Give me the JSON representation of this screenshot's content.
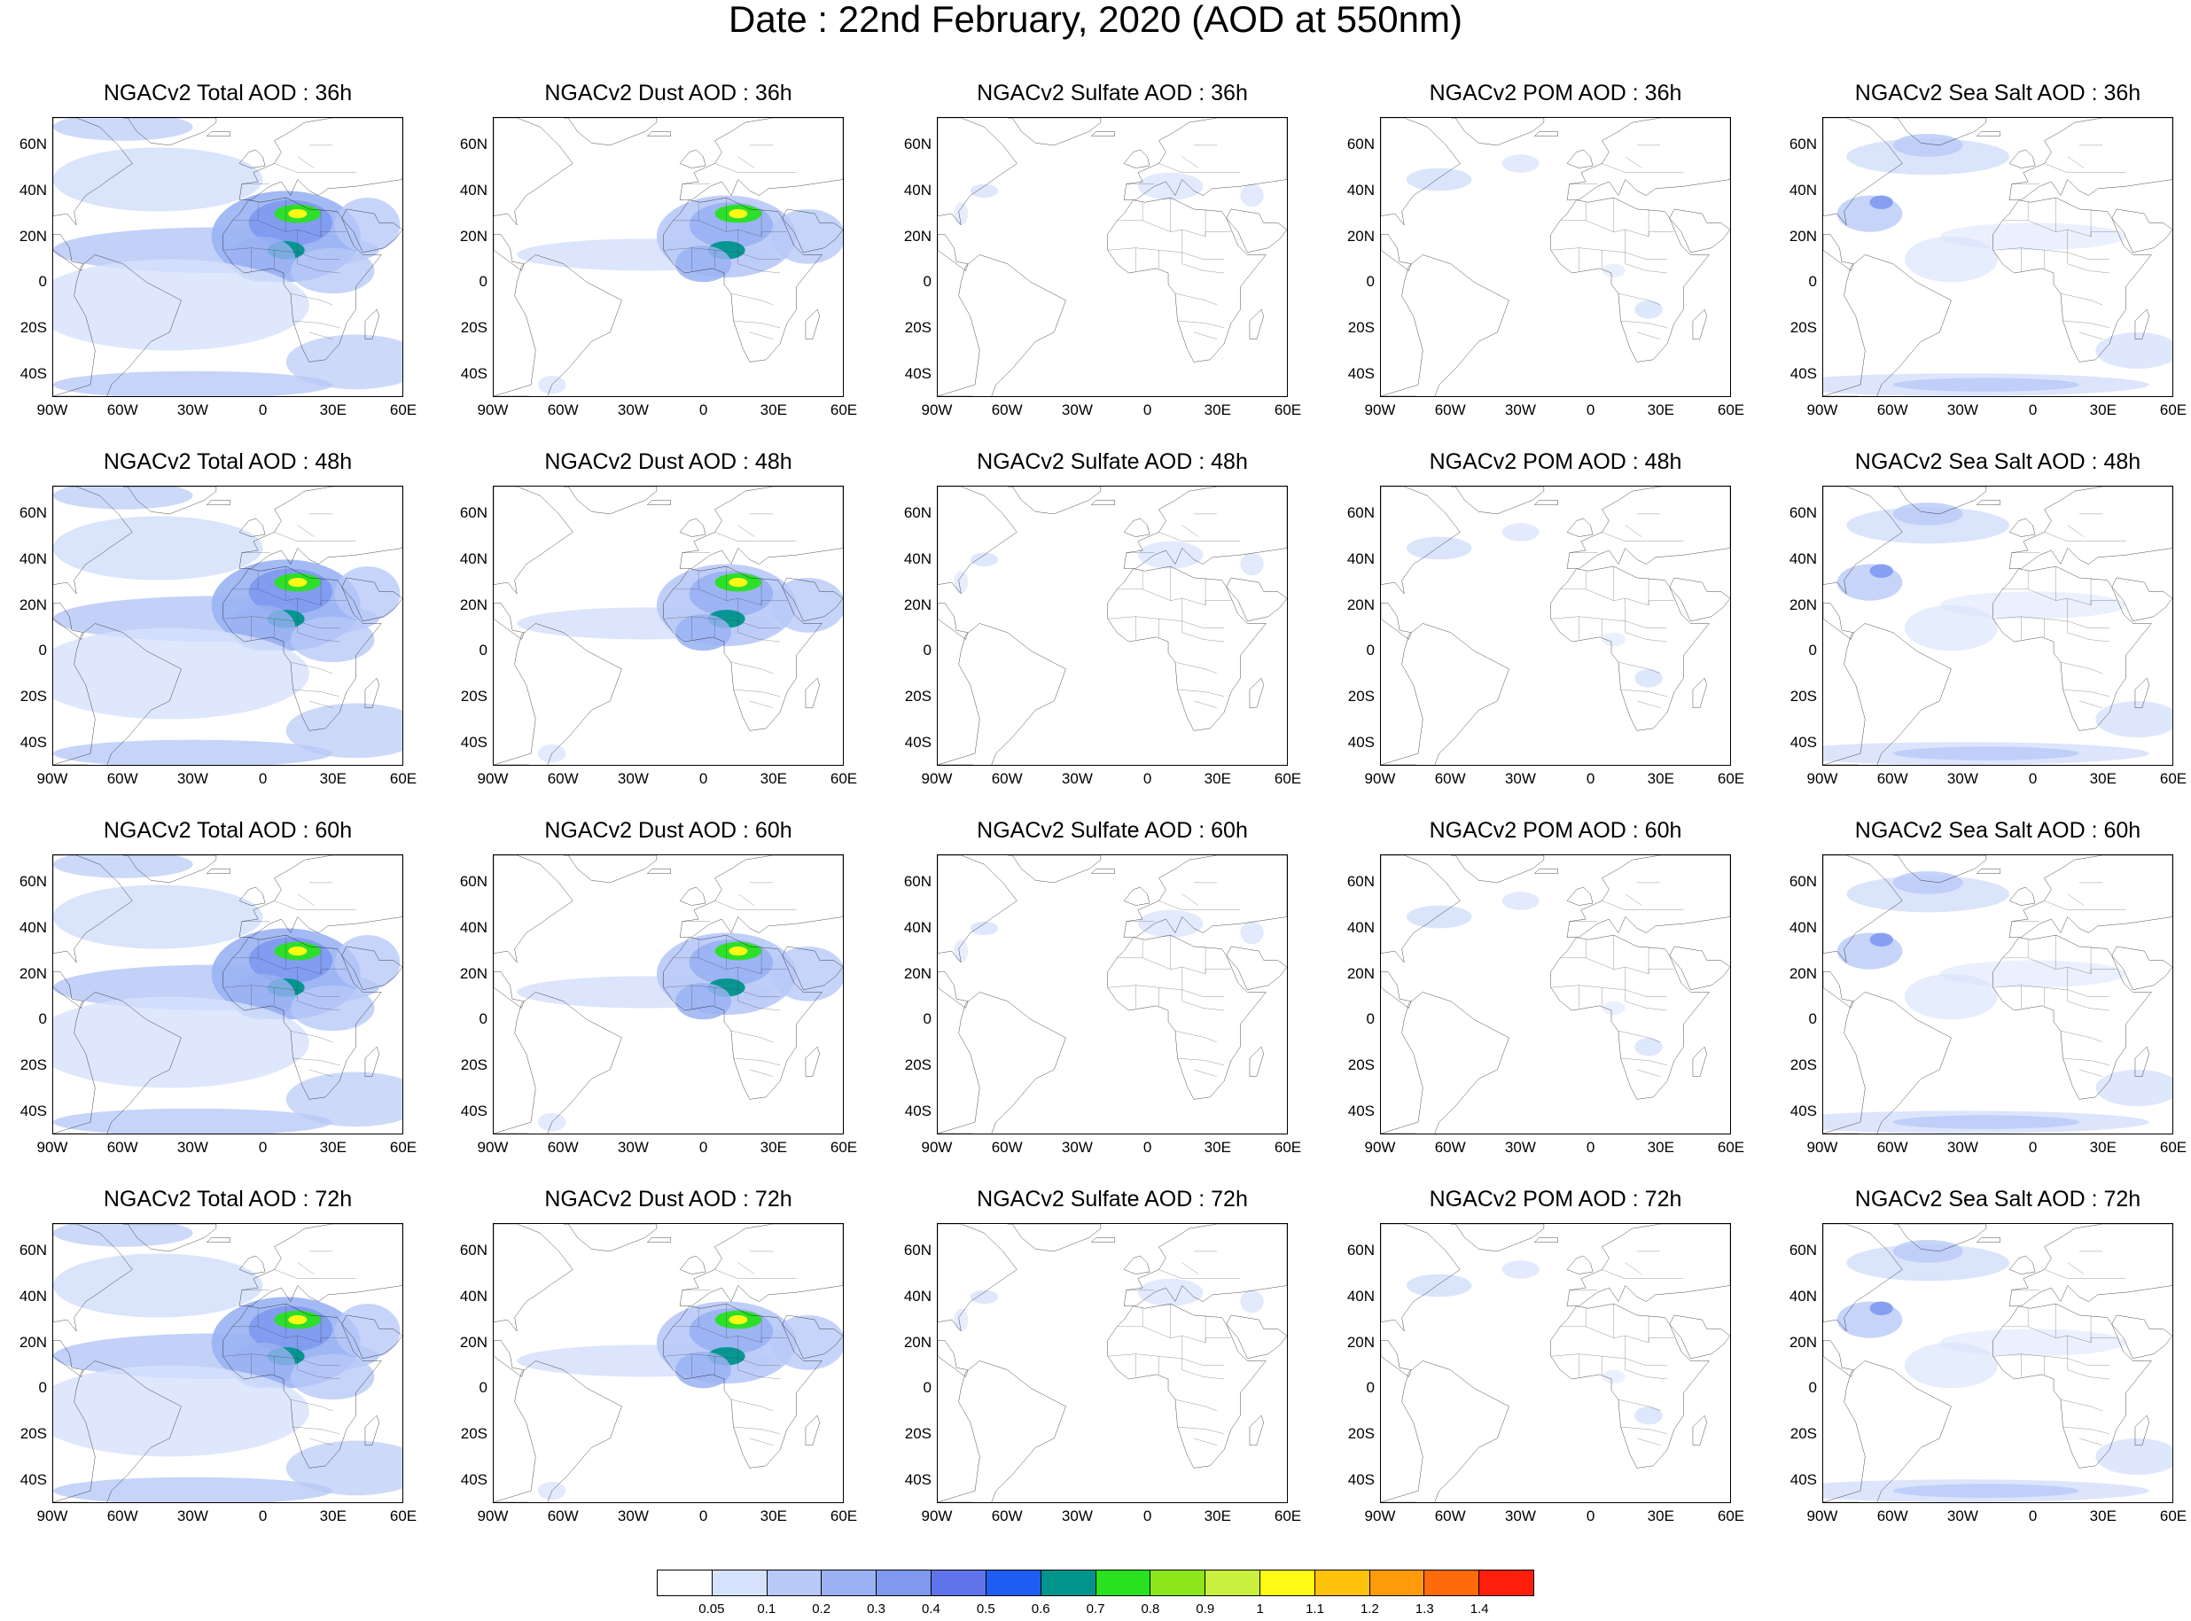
{
  "title": "Date : 22nd February, 2020 (AOD at 550nm)",
  "rows": [
    {
      "panels": [
        {
          "title": "NGACv2 Total AOD : 36h",
          "species": "total"
        },
        {
          "title": "NGACv2 Dust AOD : 36h",
          "species": "dust"
        },
        {
          "title": "NGACv2 Sulfate AOD : 36h",
          "species": "sulfate"
        },
        {
          "title": "NGACv2 POM AOD : 36h",
          "species": "pom"
        },
        {
          "title": "NGACv2 Sea Salt AOD : 36h",
          "species": "seasalt"
        }
      ]
    },
    {
      "panels": [
        {
          "title": "NGACv2 Total AOD : 48h",
          "species": "total"
        },
        {
          "title": "NGACv2 Dust AOD : 48h",
          "species": "dust"
        },
        {
          "title": "NGACv2 Sulfate AOD : 48h",
          "species": "sulfate"
        },
        {
          "title": "NGACv2 POM AOD : 48h",
          "species": "pom"
        },
        {
          "title": "NGACv2 Sea Salt AOD : 48h",
          "species": "seasalt"
        }
      ]
    },
    {
      "panels": [
        {
          "title": "NGACv2 Total AOD : 60h",
          "species": "total"
        },
        {
          "title": "NGACv2 Dust AOD : 60h",
          "species": "dust"
        },
        {
          "title": "NGACv2 Sulfate AOD : 60h",
          "species": "sulfate"
        },
        {
          "title": "NGACv2 POM AOD : 60h",
          "species": "pom"
        },
        {
          "title": "NGACv2 Sea Salt AOD : 60h",
          "species": "seasalt"
        }
      ]
    },
    {
      "panels": [
        {
          "title": "NGACv2 Total AOD : 72h",
          "species": "total"
        },
        {
          "title": "NGACv2 Dust AOD : 72h",
          "species": "dust"
        },
        {
          "title": "NGACv2 Sulfate AOD : 72h",
          "species": "sulfate"
        },
        {
          "title": "NGACv2 POM AOD : 72h",
          "species": "pom"
        },
        {
          "title": "NGACv2 Sea Salt  AOD : 72h",
          "species": "seasalt"
        }
      ]
    }
  ],
  "lat_labels": [
    "60N",
    "40N",
    "20N",
    "0",
    "20S",
    "40S"
  ],
  "lon_labels": [
    "90W",
    "60W",
    "30W",
    "0",
    "30E",
    "60E"
  ],
  "colorbar": {
    "labels": [
      "0.05",
      "0.1",
      "0.2",
      "0.3",
      "0.4",
      "0.5",
      "0.6",
      "0.7",
      "0.8",
      "0.9",
      "1",
      "1.1",
      "1.2",
      "1.3",
      "1.4"
    ],
    "colors": [
      "#ffffff",
      "#d6e1fb",
      "#b8c9f7",
      "#9ab2f3",
      "#7e99ef",
      "#5f73ea",
      "#1f5cf2",
      "#00948c",
      "#28e11f",
      "#8ce61a",
      "#c8f03c",
      "#fffa14",
      "#ffc30c",
      "#ff9a0a",
      "#ff6a0a",
      "#ff1e0a"
    ]
  }
}
